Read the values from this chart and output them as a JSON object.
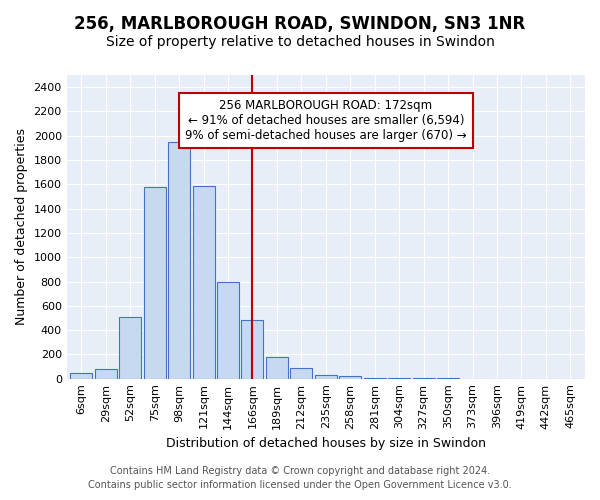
{
  "title": "256, MARLBOROUGH ROAD, SWINDON, SN3 1NR",
  "subtitle": "Size of property relative to detached houses in Swindon",
  "xlabel": "Distribution of detached houses by size in Swindon",
  "ylabel": "Number of detached properties",
  "footer_lines": [
    "Contains HM Land Registry data © Crown copyright and database right 2024.",
    "Contains public sector information licensed under the Open Government Licence v3.0."
  ],
  "categories": [
    "6sqm",
    "29sqm",
    "52sqm",
    "75sqm",
    "98sqm",
    "121sqm",
    "144sqm",
    "166sqm",
    "189sqm",
    "212sqm",
    "235sqm",
    "258sqm",
    "281sqm",
    "304sqm",
    "327sqm",
    "350sqm",
    "373sqm",
    "396sqm",
    "419sqm",
    "442sqm",
    "465sqm"
  ],
  "values": [
    50,
    80,
    510,
    1580,
    1950,
    1590,
    800,
    480,
    180,
    90,
    30,
    20,
    8,
    4,
    2,
    2,
    1,
    1,
    1,
    1,
    1
  ],
  "bar_color": "#c6d9f0",
  "bar_edge_color": "#4472c4",
  "highlight_index": 7,
  "highlight_line_color": "#c00000",
  "annotation_line1": "256 MARLBOROUGH ROAD: 172sqm",
  "annotation_line2": "← 91% of detached houses are smaller (6,594)",
  "annotation_line3": "9% of semi-detached houses are larger (670) →",
  "annotation_box_color": "#c00000",
  "ylim": [
    0,
    2500
  ],
  "yticks": [
    0,
    200,
    400,
    600,
    800,
    1000,
    1200,
    1400,
    1600,
    1800,
    2000,
    2200,
    2400
  ],
  "fig_bg_color": "#ffffff",
  "background_color": "#e8eef8",
  "grid_color": "#ffffff",
  "title_fontsize": 12,
  "subtitle_fontsize": 10,
  "xlabel_fontsize": 9,
  "ylabel_fontsize": 9,
  "tick_fontsize": 8,
  "annotation_fontsize": 8.5,
  "footer_fontsize": 7
}
